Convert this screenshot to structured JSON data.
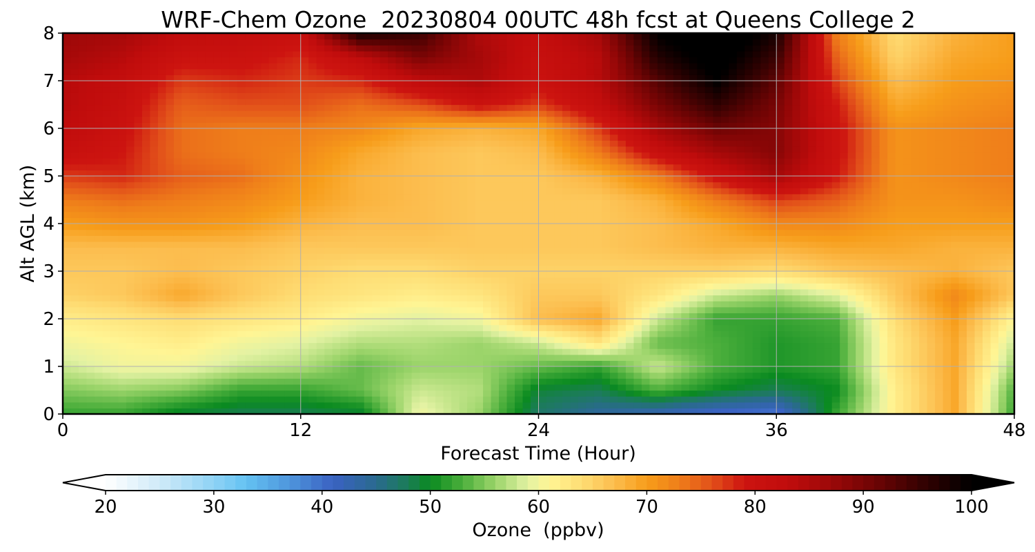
{
  "chart_data": {
    "type": "heatmap",
    "title": "WRF-Chem Ozone  20230804 00UTC 48h fcst at Queens College 2",
    "xlabel": "Forecast Time (Hour)",
    "ylabel": "Alt AGL (km)",
    "xlim": [
      0,
      48
    ],
    "ylim": [
      0,
      8
    ],
    "xticks": [
      0,
      12,
      24,
      36,
      48
    ],
    "yticks": [
      0,
      1,
      2,
      3,
      4,
      5,
      6,
      7,
      8
    ],
    "grid": true,
    "x": [
      0,
      3,
      6,
      9,
      12,
      15,
      18,
      21,
      24,
      27,
      30,
      33,
      36,
      39,
      42,
      45,
      48
    ],
    "y": [
      0,
      0.5,
      1,
      1.5,
      2,
      2.5,
      3,
      3.5,
      4,
      4.5,
      5,
      5.5,
      6,
      6.5,
      7,
      7.5,
      8
    ],
    "z": [
      [
        52,
        52,
        49,
        48,
        48,
        49,
        60,
        56,
        47,
        44,
        42,
        40,
        39,
        52,
        62,
        69,
        52
      ],
      [
        55,
        56,
        55,
        52,
        52,
        54,
        58,
        57,
        49,
        48,
        53,
        50,
        48,
        50,
        62,
        69,
        53
      ],
      [
        58,
        60,
        60,
        58,
        57,
        54,
        56,
        56,
        54,
        52,
        58,
        53,
        51,
        52,
        63,
        69,
        56
      ],
      [
        60,
        61,
        62,
        60,
        59,
        57,
        57,
        56,
        58,
        63,
        54,
        53,
        51,
        52,
        63,
        69,
        58
      ],
      [
        62,
        63,
        64,
        63,
        62,
        60,
        59,
        60,
        67,
        69,
        58,
        52,
        52,
        53,
        64,
        70,
        61
      ],
      [
        65,
        66,
        69,
        66,
        64,
        63,
        62,
        63,
        66,
        66,
        63,
        58,
        56,
        59,
        66,
        72,
        66
      ],
      [
        66,
        66,
        67,
        66,
        65,
        64,
        64,
        65,
        65,
        65,
        65,
        65,
        64,
        66,
        67,
        68,
        66
      ],
      [
        67,
        67,
        67,
        67,
        66,
        66,
        66,
        66,
        66,
        66,
        67,
        68,
        68,
        69,
        69,
        68,
        68
      ],
      [
        70,
        71,
        71,
        70,
        68,
        67,
        67,
        66,
        66,
        66,
        67,
        69,
        72,
        72,
        70,
        70,
        70
      ],
      [
        73,
        74,
        73,
        72,
        70,
        68,
        67,
        66,
        66,
        66,
        68,
        73,
        77,
        75,
        71,
        71,
        72
      ],
      [
        77,
        78,
        75,
        74,
        71,
        68,
        67,
        66,
        66,
        68,
        73,
        80,
        86,
        79,
        71,
        72,
        73
      ],
      [
        81,
        79,
        74,
        73,
        72,
        69,
        67,
        66,
        67,
        73,
        81,
        86,
        89,
        80,
        71,
        72,
        73
      ],
      [
        83,
        80,
        74,
        73,
        73,
        72,
        69,
        68,
        69,
        77,
        86,
        91,
        89,
        80,
        71,
        72,
        73
      ],
      [
        84,
        81,
        75,
        76,
        76,
        74,
        76,
        80,
        77,
        82,
        90,
        96,
        90,
        79,
        69,
        71,
        72
      ],
      [
        84,
        82,
        77,
        78,
        77,
        78,
        83,
        85,
        80,
        84,
        93,
        100,
        92,
        77,
        67,
        70,
        71
      ],
      [
        86,
        84,
        80,
        80,
        78,
        83,
        90,
        86,
        81,
        84,
        97,
        102,
        95,
        75,
        65,
        69,
        70
      ],
      [
        87,
        86,
        83,
        82,
        81,
        98,
        95,
        85,
        82,
        86,
        100,
        104,
        98,
        73,
        64,
        68,
        70
      ]
    ],
    "colorbar": {
      "label": "Ozone  (ppbv)",
      "min": 20,
      "max": 100,
      "ticks": [
        20,
        30,
        40,
        50,
        60,
        70,
        80,
        90,
        100
      ],
      "extend": "both",
      "colors": [
        {
          "v": 20,
          "c": "#ffffff"
        },
        {
          "v": 25,
          "c": "#cfeaf8"
        },
        {
          "v": 30,
          "c": "#8fd3f5"
        },
        {
          "v": 33,
          "c": "#64c2f2"
        },
        {
          "v": 37,
          "c": "#4e95dc"
        },
        {
          "v": 41,
          "c": "#3a62c2"
        },
        {
          "v": 45,
          "c": "#2a6a8e"
        },
        {
          "v": 48,
          "c": "#1a7d55"
        },
        {
          "v": 50,
          "c": "#0a8a20"
        },
        {
          "v": 53,
          "c": "#4caf3c"
        },
        {
          "v": 56,
          "c": "#9bd46a"
        },
        {
          "v": 59,
          "c": "#e3f2a3"
        },
        {
          "v": 61,
          "c": "#fff594"
        },
        {
          "v": 64,
          "c": "#fedd74"
        },
        {
          "v": 67,
          "c": "#fcbd4e"
        },
        {
          "v": 70,
          "c": "#f79d1a"
        },
        {
          "v": 73,
          "c": "#ef7e1a"
        },
        {
          "v": 76,
          "c": "#e2501a"
        },
        {
          "v": 79,
          "c": "#cd1410"
        },
        {
          "v": 83,
          "c": "#c00c0c"
        },
        {
          "v": 87,
          "c": "#9c0808"
        },
        {
          "v": 91,
          "c": "#6e0404"
        },
        {
          "v": 95,
          "c": "#3a0202"
        },
        {
          "v": 100,
          "c": "#000000"
        }
      ]
    }
  }
}
